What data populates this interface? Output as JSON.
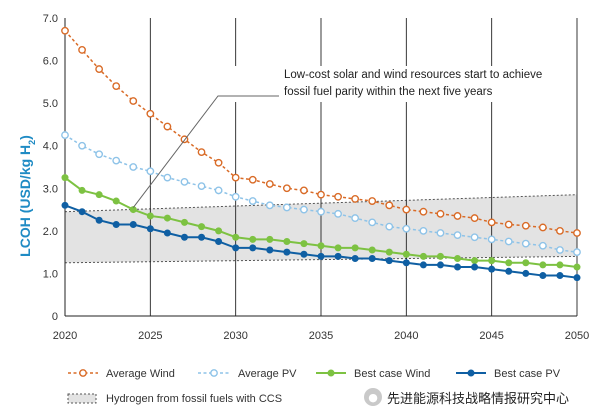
{
  "chart_data": {
    "type": "line",
    "title": "",
    "xlabel": "",
    "ylabel_main": "LCOH (USD/kg H",
    "ylabel_sub": "2",
    "ylabel_close": ")",
    "xlim": [
      2020,
      2050
    ],
    "ylim": [
      0,
      7
    ],
    "x_ticks": [
      2020,
      2025,
      2030,
      2035,
      2040,
      2045,
      2050
    ],
    "x_tick_labels": [
      "2020",
      "2025",
      "2030",
      "2035",
      "2040",
      "2045",
      "2050"
    ],
    "y_ticks": [
      0,
      1,
      2,
      3,
      4,
      5,
      6,
      7
    ],
    "y_tick_labels": [
      "0",
      "1.0",
      "2.0",
      "3.0",
      "4.0",
      "5.0",
      "6.0",
      "7.0"
    ],
    "x": [
      2020,
      2021,
      2022,
      2023,
      2024,
      2025,
      2026,
      2027,
      2028,
      2029,
      2030,
      2031,
      2032,
      2033,
      2034,
      2035,
      2036,
      2037,
      2038,
      2039,
      2040,
      2041,
      2042,
      2043,
      2044,
      2045,
      2046,
      2047,
      2048,
      2049,
      2050
    ],
    "series": [
      {
        "name": "Average Wind",
        "color": "#d96b27",
        "style": "dashed",
        "marker": "open",
        "values": [
          6.7,
          6.25,
          5.8,
          5.4,
          5.05,
          4.75,
          4.45,
          4.15,
          3.85,
          3.6,
          3.25,
          3.2,
          3.1,
          3.0,
          2.95,
          2.85,
          2.8,
          2.75,
          2.7,
          2.6,
          2.5,
          2.45,
          2.4,
          2.35,
          2.3,
          2.2,
          2.15,
          2.12,
          2.08,
          2.0,
          1.95
        ]
      },
      {
        "name": "Average PV",
        "color": "#8ec3e8",
        "style": "dashed",
        "marker": "open",
        "values": [
          4.25,
          4.0,
          3.8,
          3.65,
          3.5,
          3.4,
          3.25,
          3.15,
          3.05,
          2.95,
          2.8,
          2.7,
          2.6,
          2.55,
          2.5,
          2.45,
          2.4,
          2.3,
          2.2,
          2.1,
          2.05,
          2.0,
          1.95,
          1.9,
          1.85,
          1.8,
          1.75,
          1.7,
          1.65,
          1.55,
          1.5
        ]
      },
      {
        "name": "Best case Wind",
        "color": "#7dc242",
        "style": "solid",
        "marker": "filled",
        "values": [
          3.25,
          2.95,
          2.85,
          2.7,
          2.5,
          2.35,
          2.3,
          2.2,
          2.1,
          2.0,
          1.85,
          1.8,
          1.8,
          1.75,
          1.7,
          1.65,
          1.6,
          1.6,
          1.55,
          1.5,
          1.45,
          1.4,
          1.4,
          1.35,
          1.3,
          1.3,
          1.25,
          1.25,
          1.2,
          1.2,
          1.15
        ]
      },
      {
        "name": "Best case PV",
        "color": "#0f5fa3",
        "style": "solid",
        "marker": "filled",
        "values": [
          2.6,
          2.45,
          2.25,
          2.15,
          2.15,
          2.05,
          1.95,
          1.85,
          1.85,
          1.75,
          1.6,
          1.6,
          1.55,
          1.5,
          1.45,
          1.4,
          1.4,
          1.35,
          1.35,
          1.3,
          1.25,
          1.2,
          1.2,
          1.15,
          1.15,
          1.1,
          1.05,
          1.0,
          0.95,
          0.95,
          0.9
        ]
      }
    ],
    "band": {
      "name": "Hydrogen from fossil fuels with CCS",
      "x": [
        2020,
        2050
      ],
      "upper": [
        2.45,
        2.85
      ],
      "lower": [
        1.25,
        1.4
      ],
      "fill": "#e3e3e3",
      "edge_color": "#555555"
    },
    "annotation": {
      "lines": [
        "Low-cost solar and wind resources start to achieve",
        "fossil fuel parity within the next five years"
      ],
      "points_to": {
        "x": 2024,
        "y": 2.5
      }
    },
    "grid": {
      "vertical": true,
      "horizontal": false
    },
    "legend_position": "bottom"
  },
  "watermark": {
    "icon": "wechat-icon",
    "text": "先进能源科技战略情报研究中心"
  }
}
